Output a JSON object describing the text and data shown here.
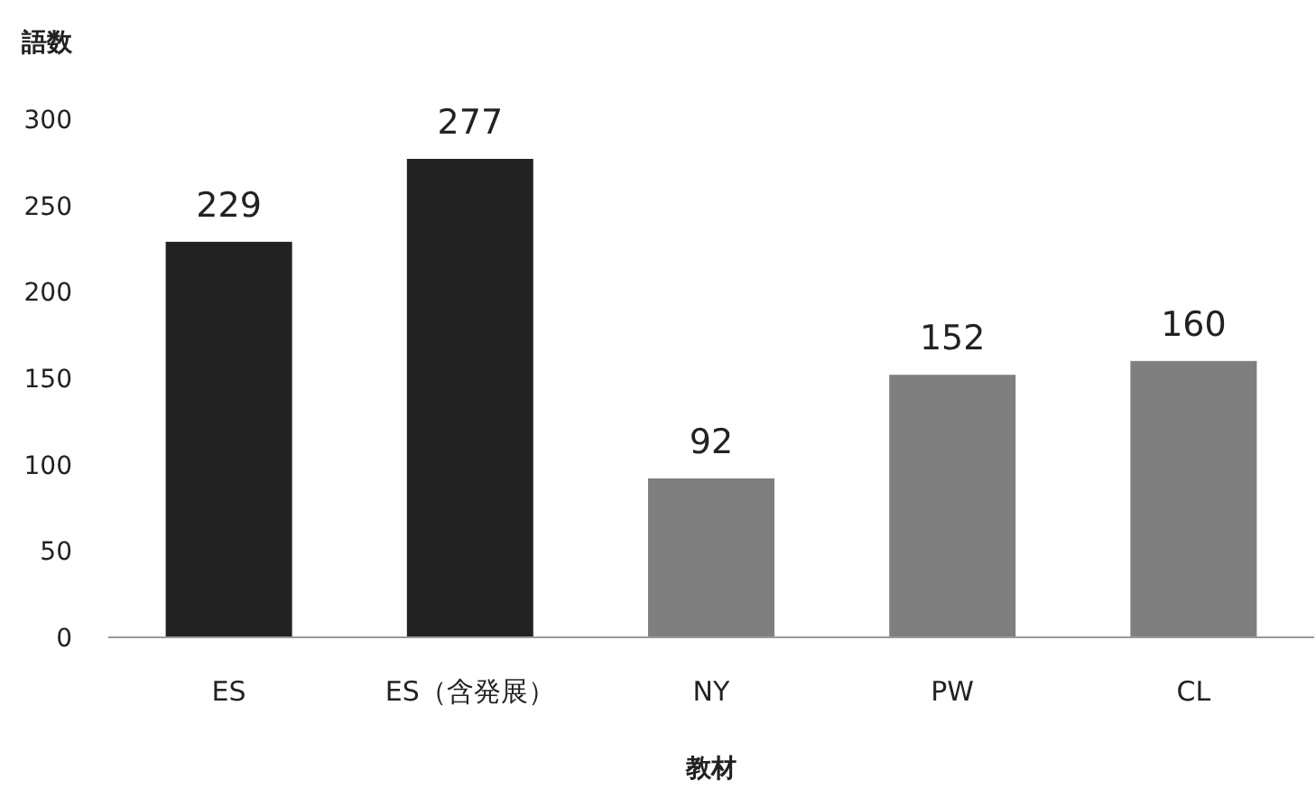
{
  "chart_data": {
    "type": "bar",
    "ylabel": "語数",
    "xlabel": "教材",
    "categories": [
      "ES",
      "ES（含発展）",
      "NY",
      "PW",
      "CL"
    ],
    "values": [
      229,
      277,
      92,
      152,
      160
    ],
    "colors": [
      "#222222",
      "#222222",
      "#7f7f7f",
      "#7f7f7f",
      "#7f7f7f"
    ],
    "ylim": [
      0,
      300
    ],
    "yticks": [
      0,
      50,
      100,
      150,
      200,
      250,
      300
    ],
    "data_labels": true
  }
}
